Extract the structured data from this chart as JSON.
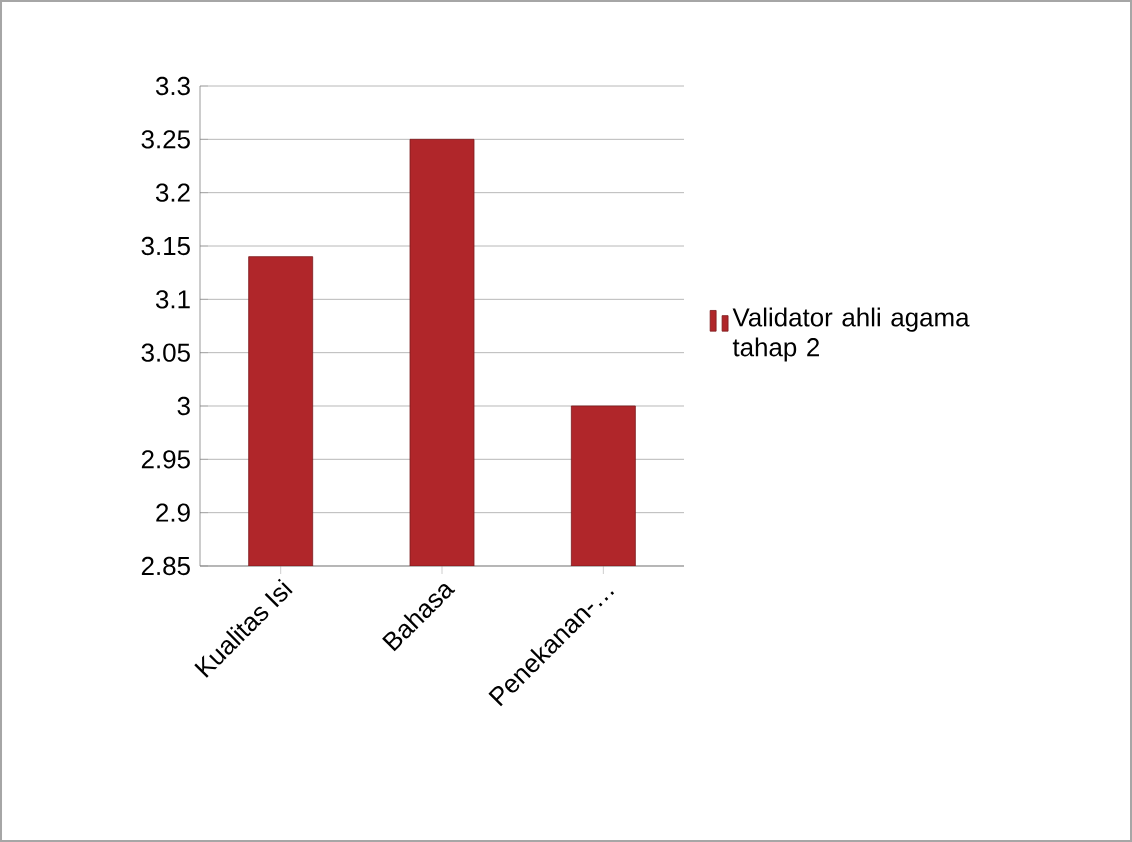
{
  "chart_data": {
    "type": "bar",
    "categories": [
      "Kualitas Isi",
      "Bahasa",
      "Penekanan-…"
    ],
    "series": [
      {
        "name": "Validator ahli agama tahap 2",
        "color": "#b0262a",
        "values": [
          3.14,
          3.25,
          3.0
        ]
      }
    ],
    "ylim": [
      2.85,
      3.3
    ],
    "yticks": [
      2.85,
      2.9,
      2.95,
      3,
      3.05,
      3.1,
      3.15,
      3.2,
      3.25,
      3.3
    ],
    "grid": "y",
    "legend": "right"
  }
}
